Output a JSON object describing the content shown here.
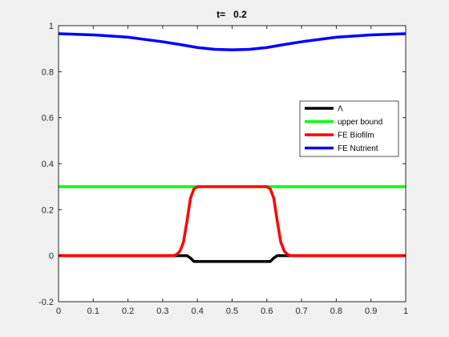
{
  "chart_data": {
    "type": "line",
    "title": "t=   0.2",
    "xlabel": "",
    "ylabel": "",
    "xlim": [
      0,
      1
    ],
    "ylim": [
      -0.2,
      1
    ],
    "grid": false,
    "legend_position": "right",
    "x_ticks": [
      0,
      0.1,
      0.2,
      0.3,
      0.4,
      0.5,
      0.6,
      0.7,
      0.8,
      0.9,
      1
    ],
    "x_tick_labels": [
      "0",
      "0.1",
      "0.2",
      "0.3",
      "0.4",
      "0.5",
      "0.6",
      "0.7",
      "0.8",
      "0.9",
      "1"
    ],
    "y_ticks": [
      -0.2,
      0,
      0.2,
      0.4,
      0.6,
      0.8,
      1
    ],
    "y_tick_labels": [
      "-0.2",
      "0",
      "0.2",
      "0.4",
      "0.6",
      "0.8",
      "1"
    ],
    "series": [
      {
        "name": "Λ",
        "color": "#000000",
        "x": [
          0,
          0.36,
          0.37,
          0.38,
          0.39,
          0.4,
          0.5,
          0.6,
          0.61,
          0.62,
          0.63,
          0.64,
          1
        ],
        "y": [
          0,
          0,
          0,
          -0.01,
          -0.025,
          -0.025,
          -0.025,
          -0.025,
          -0.025,
          -0.01,
          0,
          0,
          0
        ]
      },
      {
        "name": "upper bound",
        "color": "#00ff00",
        "x": [
          0,
          1
        ],
        "y": [
          0.3,
          0.3
        ]
      },
      {
        "name": "FE Biofilm",
        "color": "#ff0000",
        "x": [
          0,
          0.33,
          0.34,
          0.35,
          0.36,
          0.37,
          0.38,
          0.39,
          0.4,
          0.5,
          0.6,
          0.61,
          0.62,
          0.63,
          0.64,
          0.65,
          0.66,
          0.67,
          1
        ],
        "y": [
          0,
          0,
          0.005,
          0.02,
          0.06,
          0.15,
          0.25,
          0.29,
          0.3,
          0.3,
          0.3,
          0.29,
          0.25,
          0.15,
          0.06,
          0.02,
          0.005,
          0,
          0
        ]
      },
      {
        "name": "FE Nutrient",
        "color": "#0000ff",
        "x": [
          0,
          0.1,
          0.2,
          0.3,
          0.35,
          0.4,
          0.45,
          0.5,
          0.55,
          0.6,
          0.65,
          0.7,
          0.8,
          0.9,
          1
        ],
        "y": [
          0.965,
          0.96,
          0.95,
          0.93,
          0.918,
          0.905,
          0.897,
          0.895,
          0.897,
          0.905,
          0.918,
          0.93,
          0.95,
          0.96,
          0.965
        ]
      }
    ]
  }
}
